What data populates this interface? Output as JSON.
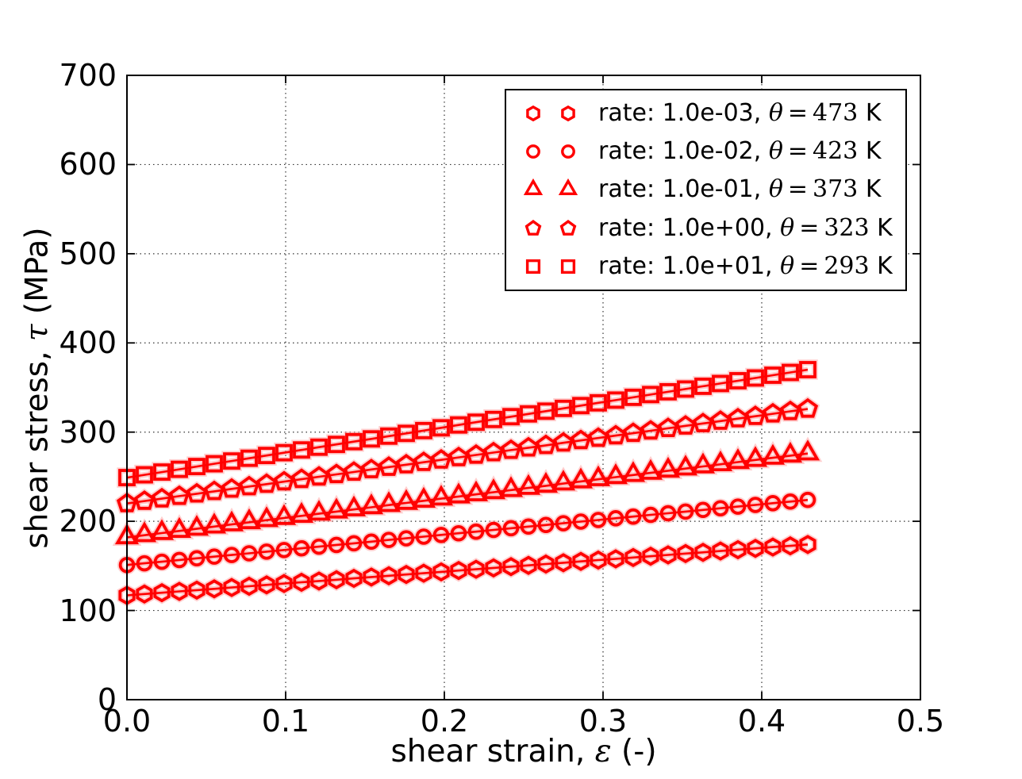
{
  "colors": {
    "series": "#ff0000",
    "halo": "#ff9e9e",
    "axis": "#000000",
    "grid": "#000000",
    "background": "#ffffff"
  },
  "chart_data": {
    "type": "line",
    "title": "",
    "xlabel": "shear strain, ε (-)",
    "ylabel": "shear stress, τ (MPa)",
    "xlabel_parts": {
      "prefix": "shear strain, ",
      "symbol": "ε",
      "suffix": " (-)"
    },
    "ylabel_parts": {
      "prefix": "shear stress, ",
      "symbol": "τ",
      "suffix": " (MPa)"
    },
    "xlim": [
      0,
      0.5
    ],
    "ylim": [
      0,
      700
    ],
    "xticks": [
      0,
      0.1,
      0.2,
      0.3,
      0.4,
      0.5
    ],
    "xtick_labels": [
      "0.0",
      "0.1",
      "0.2",
      "0.3",
      "0.4",
      "0.5"
    ],
    "yticks": [
      0,
      100,
      200,
      300,
      400,
      500,
      600,
      700
    ],
    "ytick_labels": [
      "0",
      "100",
      "200",
      "300",
      "400",
      "500",
      "600",
      "700"
    ],
    "grid": true,
    "legend_position": "upper right",
    "x": [
      0.0,
      0.011,
      0.022,
      0.033,
      0.044,
      0.055,
      0.066,
      0.077,
      0.088,
      0.099,
      0.11,
      0.121,
      0.132,
      0.143,
      0.154,
      0.165,
      0.176,
      0.187,
      0.198,
      0.209,
      0.22,
      0.231,
      0.242,
      0.253,
      0.264,
      0.275,
      0.286,
      0.297,
      0.308,
      0.319,
      0.33,
      0.341,
      0.352,
      0.363,
      0.374,
      0.385,
      0.396,
      0.407,
      0.418,
      0.429
    ],
    "series": [
      {
        "name": "rate: 1.0e-03, θ=473 K",
        "marker": "hexagon",
        "rate_label": "rate: 1.0e-03,",
        "theta_symbol": "θ",
        "theta_value": "473",
        "unit": "K",
        "values": [
          117.0,
          118.5,
          119.9,
          121.4,
          122.8,
          124.3,
          125.8,
          127.2,
          128.7,
          130.2,
          131.6,
          133.1,
          134.5,
          136.0,
          137.5,
          138.9,
          140.4,
          141.8,
          143.3,
          144.8,
          146.2,
          147.7,
          149.2,
          150.6,
          152.1,
          153.5,
          155.0,
          156.5,
          157.9,
          159.4,
          160.8,
          162.3,
          163.8,
          165.2,
          166.7,
          168.2,
          169.6,
          171.1,
          172.5,
          174.0
        ]
      },
      {
        "name": "rate: 1.0e-02, θ=423 K",
        "marker": "circle",
        "rate_label": "rate: 1.0e-02,",
        "theta_symbol": "θ",
        "theta_value": "423",
        "unit": "K",
        "values": [
          151.0,
          152.9,
          154.7,
          156.6,
          158.5,
          160.4,
          162.2,
          164.1,
          166.0,
          167.8,
          169.7,
          171.6,
          173.5,
          175.3,
          177.2,
          179.1,
          180.9,
          182.8,
          184.7,
          186.6,
          188.4,
          190.3,
          192.2,
          194.1,
          195.9,
          197.8,
          199.7,
          201.5,
          203.4,
          205.3,
          207.2,
          209.0,
          210.9,
          212.8,
          214.6,
          216.5,
          218.4,
          220.3,
          222.1,
          224.0
        ]
      },
      {
        "name": "rate: 1.0e-01, θ=373 K",
        "marker": "triangle",
        "rate_label": "rate: 1.0e-01,",
        "theta_symbol": "θ",
        "theta_value": "373",
        "unit": "K",
        "values": [
          182.0,
          184.4,
          186.8,
          189.2,
          191.6,
          194.1,
          196.5,
          198.9,
          201.3,
          203.7,
          206.1,
          208.5,
          210.9,
          213.3,
          215.7,
          218.2,
          220.6,
          223.0,
          225.4,
          227.8,
          230.2,
          232.6,
          235.0,
          237.4,
          239.8,
          242.3,
          244.7,
          247.1,
          249.5,
          251.9,
          254.3,
          256.7,
          259.1,
          261.5,
          263.9,
          266.4,
          268.8,
          271.2,
          273.6,
          276.0
        ]
      },
      {
        "name": "rate: 1.0e+00, θ=323 K",
        "marker": "pentagon",
        "rate_label": "rate: 1.0e+00,",
        "theta_symbol": "θ",
        "theta_value": "323",
        "unit": "K",
        "values": [
          220.0,
          222.7,
          225.4,
          228.2,
          230.9,
          233.6,
          236.3,
          239.0,
          241.7,
          244.5,
          247.2,
          249.9,
          252.6,
          255.3,
          258.1,
          260.8,
          263.5,
          266.2,
          268.9,
          271.6,
          274.4,
          277.1,
          279.8,
          282.5,
          285.2,
          288.0,
          290.7,
          293.4,
          296.1,
          298.8,
          301.5,
          304.3,
          307.0,
          309.7,
          312.4,
          315.1,
          317.8,
          320.6,
          323.3,
          326.0
        ]
      },
      {
        "name": "rate: 1.0e+01, θ=293 K",
        "marker": "square",
        "rate_label": "rate: 1.0e+01,",
        "theta_symbol": "θ",
        "theta_value": "293",
        "unit": "K",
        "values": [
          249.0,
          252.1,
          255.2,
          258.3,
          261.4,
          264.5,
          267.6,
          270.7,
          273.8,
          276.9,
          280.0,
          283.1,
          286.2,
          289.3,
          292.4,
          295.5,
          298.6,
          301.7,
          304.8,
          308.0,
          311.1,
          314.2,
          317.3,
          320.4,
          323.5,
          326.6,
          329.7,
          332.8,
          335.9,
          339.0,
          342.1,
          345.2,
          348.3,
          351.4,
          354.5,
          357.6,
          360.7,
          363.8,
          366.9,
          370.0
        ]
      }
    ]
  }
}
